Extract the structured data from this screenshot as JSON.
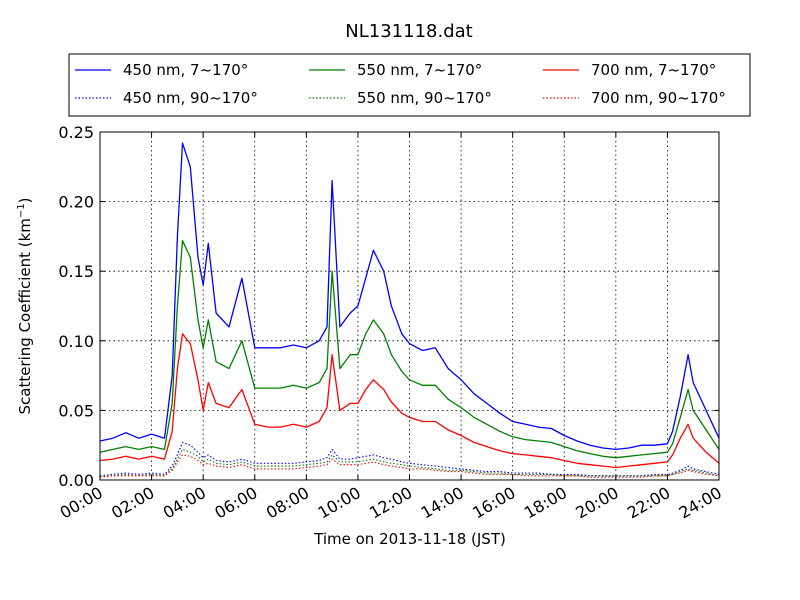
{
  "chart_data": {
    "type": "line",
    "title": "NL131118.dat",
    "xlabel": "Time on 2013-11-18 (JST)",
    "ylabel": "Scattering Coefficient (km",
    "ylabel_sup": "−1",
    "ylabel_end": ")",
    "xlim": [
      0,
      24
    ],
    "ylim": [
      0,
      0.25
    ],
    "x_ticks": [
      0,
      2,
      4,
      6,
      8,
      10,
      12,
      14,
      16,
      18,
      20,
      22,
      24
    ],
    "x_tick_labels": [
      "00:00",
      "02:00",
      "04:00",
      "06:00",
      "08:00",
      "10:00",
      "12:00",
      "14:00",
      "16:00",
      "18:00",
      "20:00",
      "22:00",
      "24:00"
    ],
    "y_ticks": [
      0,
      0.05,
      0.1,
      0.15,
      0.2,
      0.25
    ],
    "y_tick_labels": [
      "0.00",
      "0.05",
      "0.10",
      "0.15",
      "0.20",
      "0.25"
    ],
    "grid": true,
    "legend_position": "top, above plot, 3 columns",
    "x": [
      0,
      0.5,
      1,
      1.5,
      2,
      2.5,
      2.8,
      3,
      3.2,
      3.5,
      3.8,
      4,
      4.2,
      4.5,
      5,
      5.5,
      6,
      6.5,
      7,
      7.5,
      8,
      8.5,
      8.8,
      9,
      9.3,
      9.7,
      10,
      10.3,
      10.6,
      11,
      11.3,
      11.7,
      12,
      12.5,
      13,
      13.5,
      14,
      14.5,
      15,
      15.5,
      16,
      16.5,
      17,
      17.5,
      18,
      18.5,
      19,
      19.5,
      20,
      20.5,
      21,
      21.5,
      22,
      22.2,
      22.5,
      22.8,
      23,
      23.5,
      24
    ],
    "series": [
      {
        "name": "450 nm, 7~170°",
        "color": "#0000ff",
        "style": "solid",
        "values": [
          0.028,
          0.03,
          0.034,
          0.03,
          0.033,
          0.03,
          0.075,
          0.175,
          0.242,
          0.225,
          0.16,
          0.14,
          0.17,
          0.12,
          0.11,
          0.145,
          0.095,
          0.095,
          0.095,
          0.097,
          0.095,
          0.1,
          0.11,
          0.215,
          0.11,
          0.12,
          0.125,
          0.145,
          0.165,
          0.15,
          0.125,
          0.105,
          0.098,
          0.093,
          0.095,
          0.08,
          0.072,
          0.062,
          0.055,
          0.048,
          0.042,
          0.04,
          0.038,
          0.037,
          0.032,
          0.028,
          0.025,
          0.023,
          0.022,
          0.023,
          0.025,
          0.025,
          0.026,
          0.035,
          0.06,
          0.09,
          0.07,
          0.05,
          0.03
        ]
      },
      {
        "name": "550 nm, 7~170°",
        "color": "#008000",
        "style": "solid",
        "values": [
          0.02,
          0.022,
          0.024,
          0.022,
          0.024,
          0.022,
          0.055,
          0.125,
          0.172,
          0.16,
          0.115,
          0.095,
          0.115,
          0.085,
          0.08,
          0.1,
          0.066,
          0.066,
          0.066,
          0.068,
          0.066,
          0.07,
          0.08,
          0.15,
          0.08,
          0.09,
          0.09,
          0.105,
          0.115,
          0.105,
          0.09,
          0.078,
          0.072,
          0.068,
          0.068,
          0.058,
          0.052,
          0.045,
          0.04,
          0.035,
          0.031,
          0.029,
          0.028,
          0.027,
          0.024,
          0.021,
          0.019,
          0.017,
          0.016,
          0.017,
          0.018,
          0.019,
          0.02,
          0.026,
          0.045,
          0.065,
          0.05,
          0.036,
          0.022
        ]
      },
      {
        "name": "700 nm, 7~170°",
        "color": "#ff0000",
        "style": "solid",
        "values": [
          0.014,
          0.015,
          0.017,
          0.015,
          0.017,
          0.015,
          0.035,
          0.08,
          0.105,
          0.098,
          0.072,
          0.05,
          0.07,
          0.055,
          0.052,
          0.065,
          0.04,
          0.038,
          0.038,
          0.04,
          0.038,
          0.042,
          0.052,
          0.09,
          0.05,
          0.055,
          0.055,
          0.065,
          0.072,
          0.065,
          0.056,
          0.048,
          0.045,
          0.042,
          0.042,
          0.036,
          0.032,
          0.027,
          0.024,
          0.021,
          0.019,
          0.018,
          0.017,
          0.016,
          0.014,
          0.012,
          0.011,
          0.01,
          0.009,
          0.01,
          0.011,
          0.012,
          0.013,
          0.018,
          0.03,
          0.04,
          0.03,
          0.02,
          0.012
        ]
      },
      {
        "name": "450 nm, 90~170°",
        "color": "#0000ff",
        "style": "dotted",
        "values": [
          0.003,
          0.004,
          0.005,
          0.004,
          0.005,
          0.004,
          0.01,
          0.018,
          0.027,
          0.025,
          0.02,
          0.016,
          0.018,
          0.014,
          0.013,
          0.015,
          0.012,
          0.012,
          0.012,
          0.012,
          0.013,
          0.014,
          0.016,
          0.022,
          0.015,
          0.015,
          0.016,
          0.017,
          0.018,
          0.016,
          0.015,
          0.013,
          0.012,
          0.011,
          0.01,
          0.009,
          0.008,
          0.007,
          0.006,
          0.006,
          0.005,
          0.005,
          0.005,
          0.004,
          0.004,
          0.004,
          0.003,
          0.003,
          0.003,
          0.003,
          0.003,
          0.004,
          0.004,
          0.005,
          0.007,
          0.01,
          0.008,
          0.006,
          0.004
        ]
      },
      {
        "name": "550 nm, 90~170°",
        "color": "#008000",
        "style": "dotted",
        "values": [
          0.003,
          0.003,
          0.004,
          0.003,
          0.004,
          0.003,
          0.008,
          0.015,
          0.022,
          0.02,
          0.017,
          0.013,
          0.015,
          0.012,
          0.011,
          0.013,
          0.01,
          0.01,
          0.01,
          0.01,
          0.011,
          0.012,
          0.013,
          0.018,
          0.013,
          0.013,
          0.013,
          0.014,
          0.015,
          0.013,
          0.012,
          0.011,
          0.01,
          0.009,
          0.008,
          0.007,
          0.007,
          0.006,
          0.005,
          0.005,
          0.004,
          0.004,
          0.004,
          0.004,
          0.003,
          0.003,
          0.003,
          0.003,
          0.003,
          0.003,
          0.003,
          0.003,
          0.003,
          0.004,
          0.006,
          0.008,
          0.007,
          0.005,
          0.003
        ]
      },
      {
        "name": "700 nm, 90~170°",
        "color": "#ff0000",
        "style": "dotted",
        "values": [
          0.002,
          0.003,
          0.003,
          0.003,
          0.003,
          0.003,
          0.007,
          0.013,
          0.018,
          0.017,
          0.014,
          0.011,
          0.012,
          0.01,
          0.009,
          0.011,
          0.008,
          0.008,
          0.008,
          0.008,
          0.009,
          0.01,
          0.011,
          0.015,
          0.011,
          0.011,
          0.011,
          0.012,
          0.013,
          0.011,
          0.01,
          0.009,
          0.008,
          0.008,
          0.007,
          0.006,
          0.006,
          0.005,
          0.004,
          0.004,
          0.004,
          0.003,
          0.003,
          0.003,
          0.003,
          0.003,
          0.002,
          0.002,
          0.002,
          0.002,
          0.002,
          0.003,
          0.003,
          0.004,
          0.005,
          0.007,
          0.006,
          0.004,
          0.003
        ]
      }
    ]
  }
}
